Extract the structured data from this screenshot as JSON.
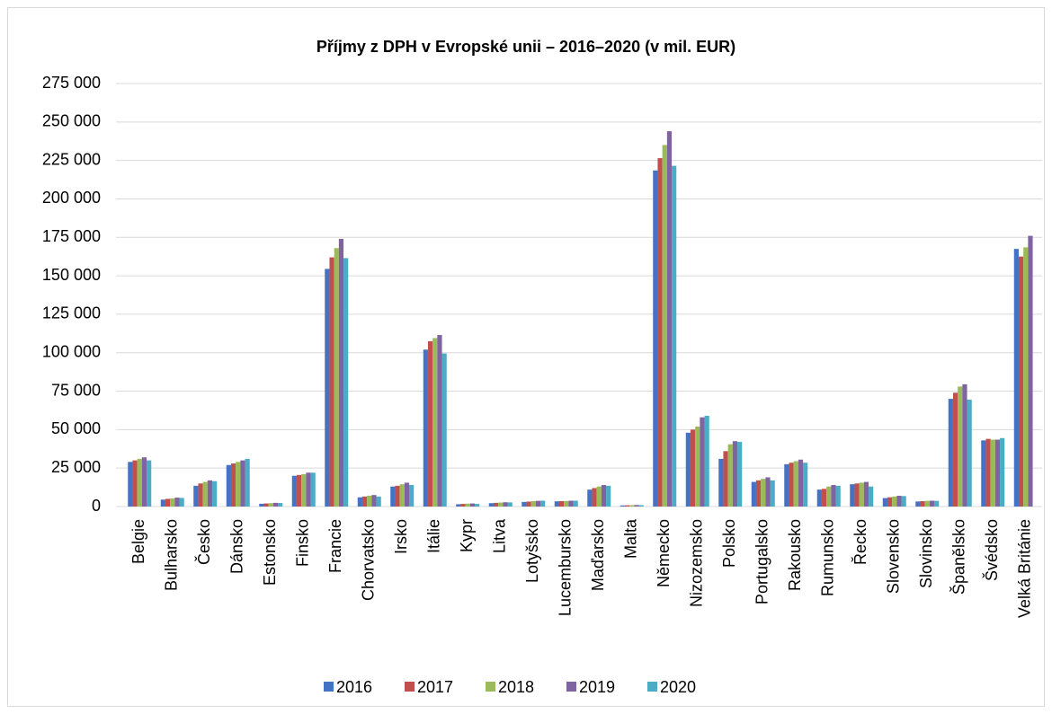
{
  "chart_data": {
    "type": "bar",
    "title": "Příjmy z DPH v Evropské unii – 2016–2020 (v mil. EUR)",
    "categories": [
      "Belgie",
      "Bulharsko",
      "Česko",
      "Dánsko",
      "Estonsko",
      "Finsko",
      "Francie",
      "Chorvatsko",
      "Irsko",
      "Itálie",
      "Kypr",
      "Litva",
      "Lotyšsko",
      "Lucembursko",
      "Maďarsko",
      "Malta",
      "Německo",
      "Nizozemsko",
      "Polsko",
      "Portugalsko",
      "Rakousko",
      "Rumunsko",
      "Řecko",
      "Slovensko",
      "Slovinsko",
      "Španělsko",
      "Švédsko",
      "Velká Británie"
    ],
    "series": [
      {
        "name": "2016",
        "color": "#4472c4",
        "values": [
          29000,
          4500,
          13500,
          27000,
          1800,
          20000,
          154500,
          6000,
          13000,
          102000,
          1500,
          2200,
          3000,
          3400,
          11000,
          700,
          218500,
          48000,
          31000,
          16000,
          27500,
          11000,
          14500,
          5500,
          3300,
          70000,
          43000,
          167500
        ]
      },
      {
        "name": "2017",
        "color": "#c0504d",
        "values": [
          30000,
          5000,
          15000,
          28000,
          2000,
          20500,
          162000,
          6500,
          13500,
          107500,
          1700,
          2400,
          3200,
          3500,
          12000,
          800,
          226500,
          50000,
          36000,
          17000,
          28500,
          11500,
          15000,
          6000,
          3500,
          74000,
          44000,
          162500
        ]
      },
      {
        "name": "2018",
        "color": "#9bbb59",
        "values": [
          31000,
          5300,
          16000,
          29000,
          2200,
          21000,
          168000,
          7000,
          14500,
          109500,
          1900,
          2600,
          3500,
          3600,
          13000,
          900,
          235000,
          52000,
          40500,
          18000,
          29500,
          13000,
          15500,
          6500,
          3700,
          78000,
          43500,
          168500
        ]
      },
      {
        "name": "2019",
        "color": "#8064a2",
        "values": [
          32000,
          5800,
          17000,
          30000,
          2400,
          22000,
          174000,
          7500,
          15500,
          111500,
          2000,
          2800,
          3700,
          3800,
          14000,
          1000,
          244000,
          58000,
          42500,
          19000,
          30500,
          14000,
          16000,
          7000,
          3800,
          79500,
          43500,
          176000
        ]
      },
      {
        "name": "2020",
        "color": "#4bacc6",
        "values": [
          30000,
          5600,
          16500,
          31000,
          2300,
          22000,
          161500,
          6500,
          14000,
          99500,
          1700,
          2700,
          3800,
          3800,
          13500,
          900,
          221500,
          59000,
          42000,
          17000,
          28500,
          13500,
          13000,
          6800,
          3700,
          69500,
          44500,
          null
        ]
      }
    ],
    "ylim": [
      0,
      275000
    ],
    "yticks": [
      0,
      {
        "value": 25000,
        "label": "25 000"
      },
      {
        "value": 50000,
        "label": "50 000"
      },
      {
        "value": 75000,
        "label": "75 000"
      },
      {
        "value": 100000,
        "label": "100 000"
      },
      {
        "value": 125000,
        "label": "125 000"
      },
      {
        "value": 150000,
        "label": "150 000"
      },
      {
        "value": 175000,
        "label": "175 000"
      },
      {
        "value": 200000,
        "label": "200 000"
      },
      {
        "value": 225000,
        "label": "225 000"
      },
      {
        "value": 250000,
        "label": "250 000"
      },
      {
        "value": 275000,
        "label": "275 000"
      }
    ],
    "grid": true,
    "legend": "bottom"
  }
}
